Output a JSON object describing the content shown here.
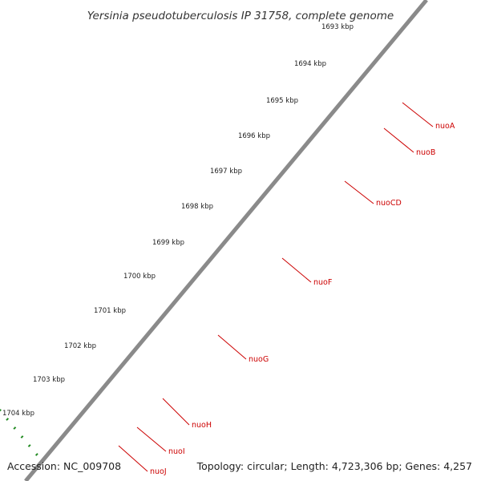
{
  "title": "Yersinia pseudotuberculosis IP 31758, complete genome",
  "ticks": [
    "1693 kbp",
    "1694 kbp",
    "1695 kbp",
    "1696 kbp",
    "1697 kbp",
    "1698 kbp",
    "1699 kbp",
    "1700 kbp",
    "1701 kbp",
    "1702 kbp",
    "1703 kbp",
    "1704 kbp"
  ],
  "genes": [
    "nuoA",
    "nuoB",
    "nuoCD",
    "nuoF",
    "nuoG",
    "nuoH",
    "nuoI",
    "nuoJ"
  ],
  "footer": {
    "accession": "Accession: NC_009708",
    "stats": "Topology: circular; Length: 4,723,306 bp; Genes: 4,257"
  },
  "colors": {
    "forward_feature": "#ff0000",
    "cds": "#00ffff",
    "backbone": "#8a8a8a",
    "tick": "#228b22",
    "gene_label": "#cc0000"
  }
}
